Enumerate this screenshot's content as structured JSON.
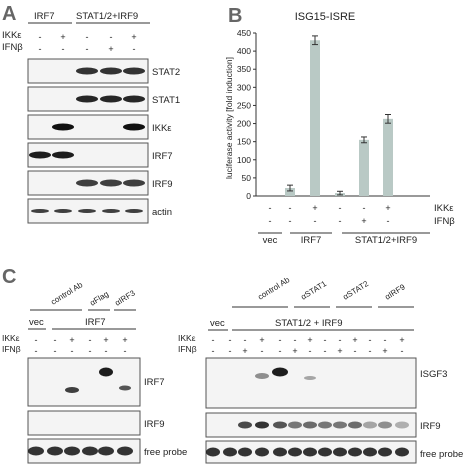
{
  "panels": {
    "a": "A",
    "b": "B",
    "c": "C"
  },
  "panel_a": {
    "groups": [
      "IRF7",
      "STAT1/2+IRF9"
    ],
    "row_labels": [
      "IKKε",
      "IFNβ"
    ],
    "rows": [
      [
        "-",
        "+",
        "-",
        "-",
        "+"
      ],
      [
        "-",
        "-",
        "-",
        "+",
        "-"
      ]
    ],
    "blots": [
      "STAT2",
      "STAT1",
      "IKKε",
      "IRF7",
      "IRF9",
      "actin"
    ]
  },
  "chart_data": {
    "type": "bar",
    "title": "ISG15-ISRE",
    "ylabel": "luciferase activity [fold induction]",
    "ylim": [
      0,
      450
    ],
    "yticks": [
      0,
      50,
      100,
      150,
      200,
      250,
      300,
      350,
      400,
      450
    ],
    "categories": [
      "vec",
      "IRF7 -",
      "IRF7 +",
      "STAT -",
      "STAT IFNβ",
      "STAT IKKε"
    ],
    "values": [
      0,
      22,
      430,
      8,
      155,
      213
    ],
    "errors": [
      0,
      8,
      12,
      5,
      8,
      12
    ],
    "xgroups": [
      "vec",
      "IRF7",
      "STAT1/2+IRF9"
    ],
    "row_labels": [
      "IKKε",
      "IFNβ"
    ],
    "rows": [
      [
        "-",
        "-",
        "+",
        "-",
        "-",
        "+"
      ],
      [
        "-",
        "-",
        "-",
        "-",
        "+",
        "-"
      ]
    ],
    "bar_color": "#b9c9c5"
  },
  "panel_c_left": {
    "antibodies": [
      "control Ab",
      "αFlag",
      "αIRF3"
    ],
    "groups": [
      "vec",
      "IRF7"
    ],
    "row_labels": [
      "IKKε",
      "IFNβ"
    ],
    "rows": [
      [
        "-",
        "-",
        "+",
        "-",
        "+",
        "+"
      ],
      [
        "-",
        "-",
        "-",
        "-",
        "-",
        "-"
      ]
    ],
    "blots": [
      "IRF7",
      "IRF9",
      "free probe"
    ]
  },
  "panel_c_right": {
    "antibodies": [
      "control Ab",
      "αSTAT1",
      "αSTAT2",
      "αIRF9"
    ],
    "groups": [
      "vec",
      "STAT1/2 + IRF9"
    ],
    "row_labels": [
      "IKKε",
      "IFNβ"
    ],
    "rows": [
      [
        "-",
        "-",
        "-",
        "+",
        "-",
        "-",
        "+",
        "-",
        "-",
        "+",
        "-",
        "-",
        "+"
      ],
      [
        "-",
        "-",
        "+",
        "-",
        "-",
        "+",
        "-",
        "-",
        "+",
        "-",
        "-",
        "+",
        "-"
      ]
    ],
    "blots": [
      "ISGF3",
      "IRF9",
      "free probe"
    ]
  }
}
